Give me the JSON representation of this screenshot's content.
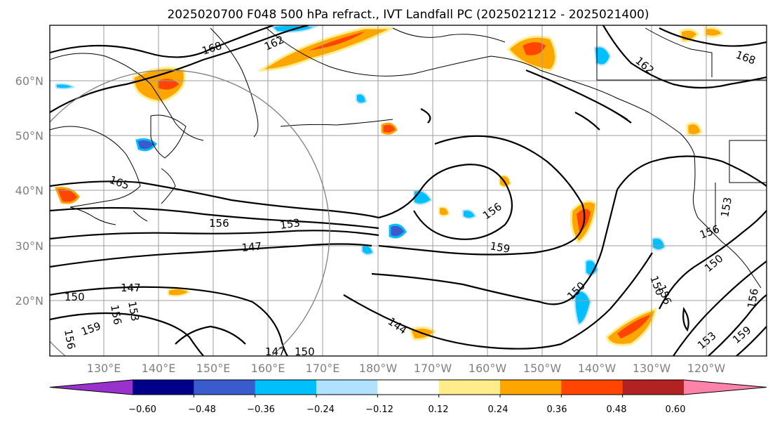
{
  "title": "2025020700 F048 500 hPa refract., IVT Landfall PC (2025021212 - 2025021400)",
  "lat_labels": [
    "60°N",
    "50°N",
    "40°N",
    "30°N",
    "20°N"
  ],
  "lon_labels": [
    "130°E",
    "140°E",
    "150°E",
    "160°E",
    "170°E",
    "180°W",
    "170°W",
    "160°W",
    "150°W",
    "140°W",
    "130°W",
    "120°W"
  ],
  "colorbar": {
    "ticks": [
      "−0.60",
      "−0.48",
      "−0.36",
      "−0.24",
      "−0.12",
      "0.12",
      "0.24",
      "0.36",
      "0.48",
      "0.60"
    ],
    "colors": [
      "#9932cc",
      "#00008b",
      "#3a5bcd",
      "#00bfff",
      "#b0e2ff",
      "#ffffff",
      "#ffec8b",
      "#ffa500",
      "#ff4500",
      "#b22222",
      "#ff82ab"
    ]
  },
  "contour_labels": [
    "168",
    "162",
    "168",
    "162",
    "165",
    "156",
    "153",
    "147",
    "147",
    "153",
    "156",
    "150",
    "156",
    "159",
    "159",
    "156",
    "150",
    "144",
    "147",
    "150",
    "156",
    "153",
    "150",
    "156",
    "150",
    "153",
    "159",
    "156"
  ],
  "colors": {
    "contour": "#000000",
    "coast": "#000000",
    "grid": "#9e9e9e",
    "circle": "#808080"
  }
}
